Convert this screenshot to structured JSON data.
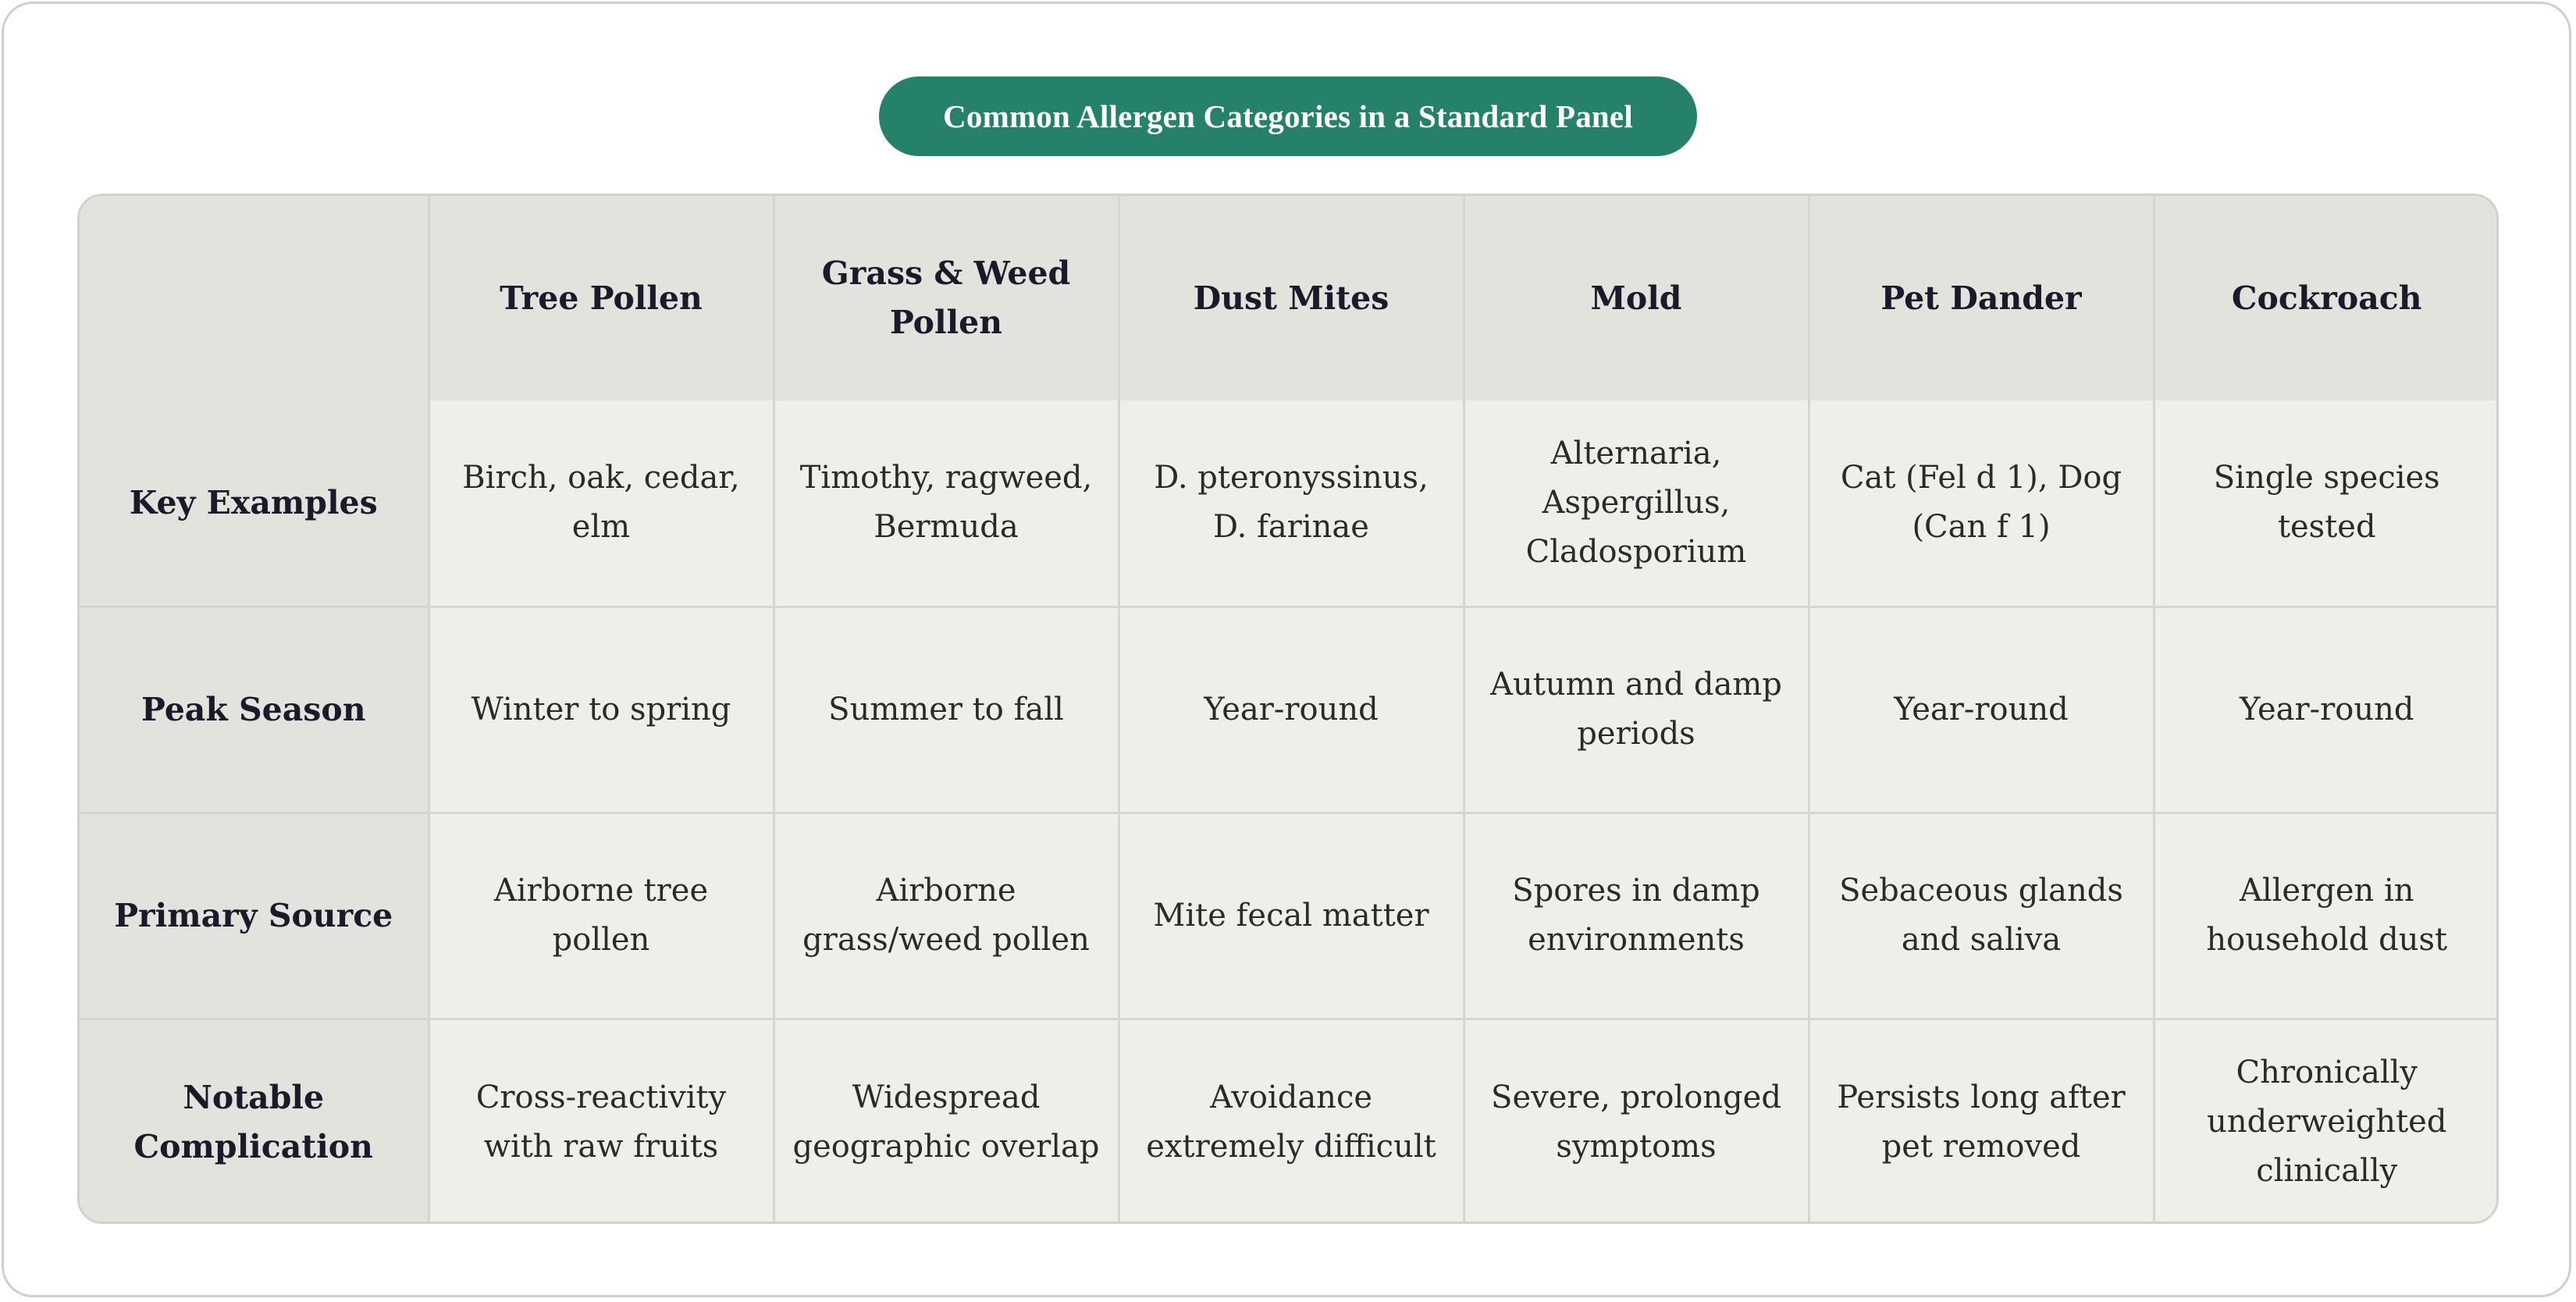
{
  "title": "Common Allergen Categories in a Standard Panel",
  "table": {
    "columns": [
      "",
      "Tree Pollen",
      "Grass & Weed Pollen",
      "Dust Mites",
      "Mold",
      "Pet Dander",
      "Cockroach"
    ],
    "rows": [
      {
        "label": "Key Examples",
        "cells": [
          "Birch, oak, cedar, elm",
          "Timothy, ragweed, Bermuda",
          "D. pteronyssinus, D. farinae",
          "Alternaria, Aspergillus, Cladosporium",
          "Cat (Fel d 1), Dog (Can f 1)",
          "Single species tested"
        ]
      },
      {
        "label": "Peak Season",
        "cells": [
          "Winter to spring",
          "Summer to fall",
          "Year-round",
          "Autumn and damp periods",
          "Year-round",
          "Year-round"
        ]
      },
      {
        "label": "Primary Source",
        "cells": [
          "Airborne tree pollen",
          "Airborne grass/weed pollen",
          "Mite fecal matter",
          "Spores in damp environments",
          "Sebaceous glands and saliva",
          "Allergen in household dust"
        ]
      },
      {
        "label": "Notable Complication",
        "cells": [
          "Cross-reactivity with raw fruits",
          "Widespread geographic overlap",
          "Avoidance extremely difficult",
          "Severe, prolonged symptoms",
          "Persists long after pet removed",
          "Chronically underweighted clinically"
        ]
      }
    ]
  }
}
